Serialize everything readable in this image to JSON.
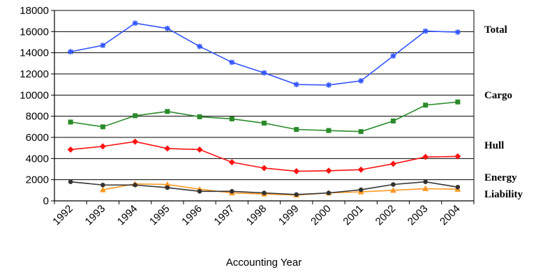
{
  "chart_data": {
    "type": "line",
    "xlabel": "Accounting Year",
    "ylabel": "",
    "ylim": [
      0,
      18000
    ],
    "yticks": [
      0,
      2000,
      4000,
      6000,
      8000,
      10000,
      12000,
      14000,
      16000,
      18000
    ],
    "categories": [
      "1992",
      "1993",
      "1994",
      "1995",
      "1996",
      "1997",
      "1998",
      "1999",
      "2000",
      "2001",
      "2002",
      "2003",
      "2004"
    ],
    "grid": true,
    "legend": "right",
    "series": [
      {
        "name": "Total",
        "color": "#3355ff",
        "marker": "star",
        "values": [
          14100,
          14700,
          16800,
          16300,
          14600,
          13100,
          12100,
          11000,
          10950,
          11350,
          13700,
          16050,
          15950
        ]
      },
      {
        "name": "Cargo",
        "color": "#2a8a2a",
        "marker": "square",
        "values": [
          7450,
          7000,
          8050,
          8450,
          7950,
          7750,
          7350,
          6750,
          6650,
          6550,
          7550,
          9050,
          9350
        ]
      },
      {
        "name": "Hull",
        "color": "#ff1111",
        "marker": "diamond",
        "values": [
          4850,
          5150,
          5600,
          4950,
          4850,
          3650,
          3100,
          2800,
          2850,
          2950,
          3500,
          4150,
          4200
        ]
      },
      {
        "name": "Energy",
        "color": "#333333",
        "marker": "circle",
        "values": [
          1800,
          1500,
          1500,
          1250,
          900,
          900,
          750,
          600,
          750,
          1050,
          1550,
          1800,
          1300
        ]
      },
      {
        "name": "Liability",
        "color": "#ff9922",
        "marker": "triangle",
        "values": [
          null,
          1050,
          1600,
          1550,
          1100,
          750,
          650,
          550,
          750,
          850,
          1000,
          1150,
          1100
        ]
      }
    ]
  }
}
